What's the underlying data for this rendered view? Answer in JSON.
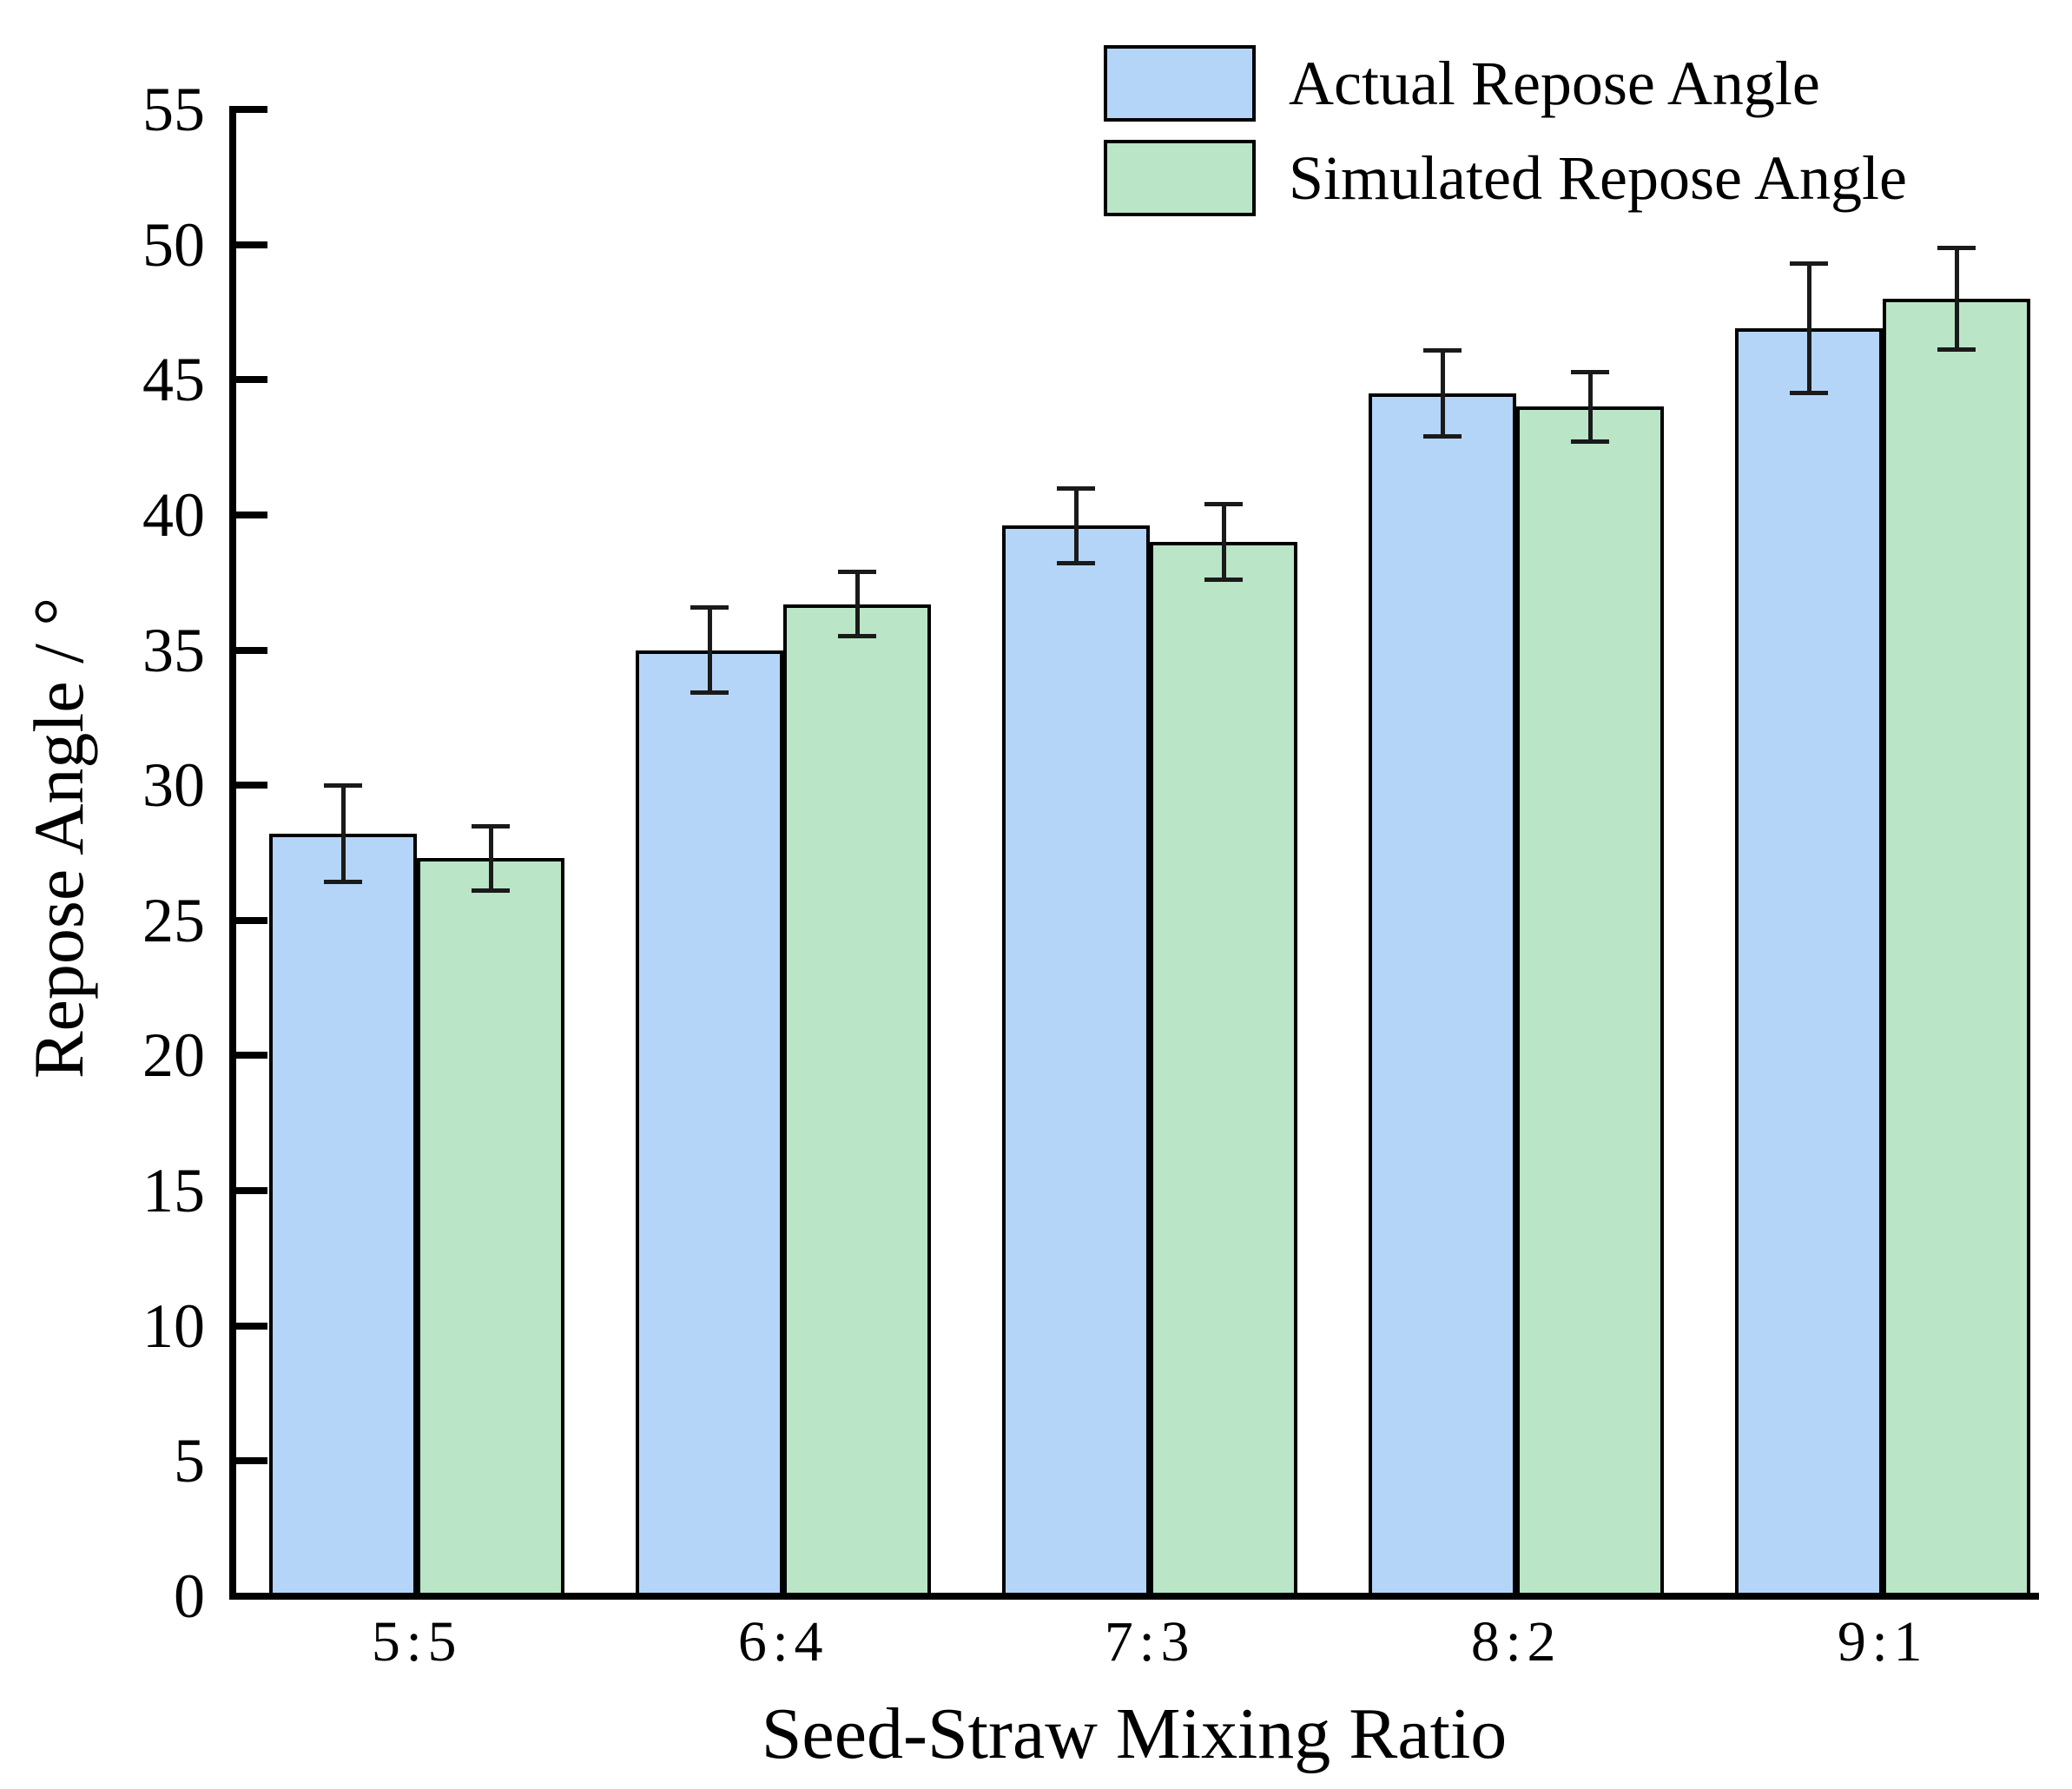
{
  "chart_data": {
    "type": "bar",
    "title": "",
    "categories": [
      "5:5",
      "6:4",
      "7:3",
      "8:2",
      "9:1"
    ],
    "series": [
      {
        "name": "Actual Repose Angle",
        "color": "#b4d5f8",
        "values": [
          28.2,
          35.0,
          39.6,
          44.5,
          46.9
        ],
        "errors": [
          1.8,
          1.6,
          1.4,
          1.6,
          2.4
        ]
      },
      {
        "name": "Simulated Repose Angle",
        "color": "#bae5c6",
        "values": [
          27.3,
          36.7,
          39.0,
          44.0,
          48.0
        ],
        "errors": [
          1.2,
          1.2,
          1.4,
          1.3,
          1.9
        ]
      }
    ],
    "xlabel": "Seed-Straw Mixing Ratio",
    "ylabel": "Repose Angle / °",
    "ylim": [
      0,
      55
    ],
    "yticks": [
      0,
      5,
      10,
      15,
      20,
      25,
      30,
      35,
      40,
      45,
      50,
      55
    ],
    "grid": false,
    "legend_position": "top-right",
    "error_bars": true,
    "axis_color": "#000000",
    "background_color": "#ffffff"
  }
}
